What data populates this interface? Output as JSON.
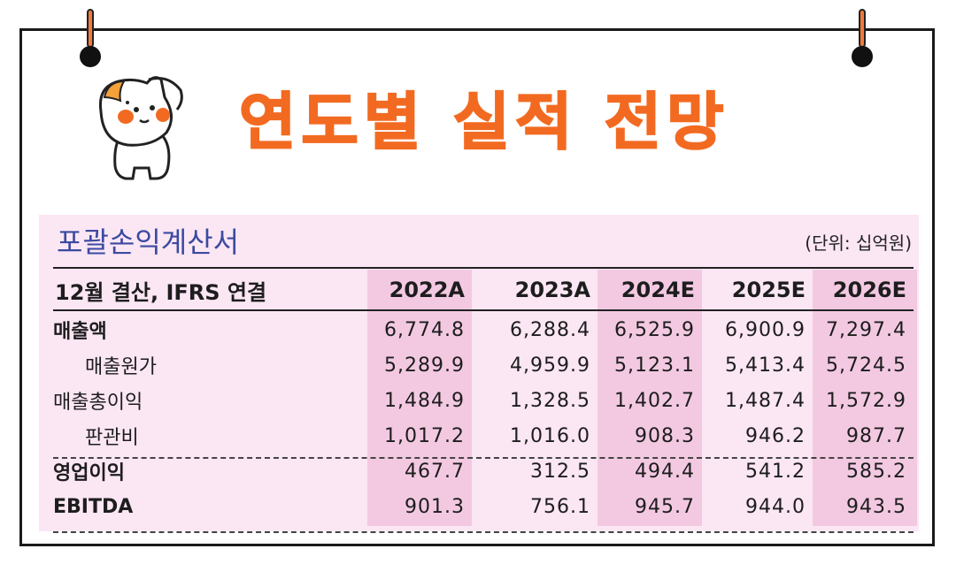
{
  "title": "연도별 실적 전망",
  "statement": {
    "title": "포괄손익계산서",
    "unit": "(단위: 십억원)"
  },
  "table": {
    "header_label": "12월 결산, IFRS 연결",
    "years": [
      "2022A",
      "2023A",
      "2024E",
      "2025E",
      "2026E"
    ],
    "rows": [
      {
        "label": "매출액",
        "values": [
          "6,774.8",
          "6,288.4",
          "6,525.9",
          "6,900.9",
          "7,297.4"
        ]
      },
      {
        "label": "매출원가",
        "values": [
          "5,289.9",
          "4,959.9",
          "5,123.1",
          "5,413.4",
          "5,724.5"
        ]
      },
      {
        "label": "매출총이익",
        "values": [
          "1,484.9",
          "1,328.5",
          "1,402.7",
          "1,487.4",
          "1,572.9"
        ]
      },
      {
        "label": "판관비",
        "values": [
          "1,017.2",
          "1,016.0",
          "908.3",
          "946.2",
          "987.7"
        ]
      },
      {
        "label": "영업이익",
        "values": [
          "467.7",
          "312.5",
          "494.4",
          "541.2",
          "585.2"
        ]
      },
      {
        "label": "EBITDA",
        "values": [
          "901.3",
          "756.1",
          "945.7",
          "944.0",
          "943.5"
        ]
      }
    ]
  },
  "colors": {
    "accent": "#f26a21",
    "panel": "#fbe6f4",
    "highlight_column": "#f3c9e2",
    "statement_title": "#3b4aa0"
  },
  "icons": [
    "cat-mascot-icon",
    "pushpin-icon"
  ]
}
